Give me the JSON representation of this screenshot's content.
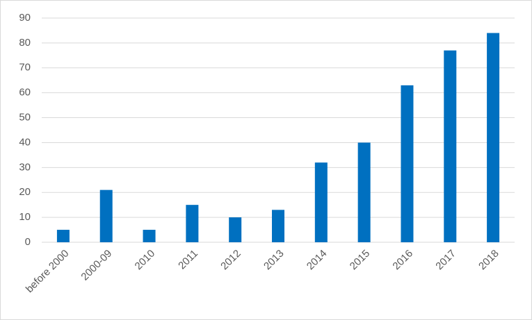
{
  "chart_data": {
    "type": "bar",
    "categories": [
      "before 2000",
      "2000-09",
      "2010",
      "2011",
      "2012",
      "2013",
      "2014",
      "2015",
      "2016",
      "2017",
      "2018"
    ],
    "values": [
      5,
      21,
      5,
      15,
      10,
      13,
      32,
      40,
      63,
      77,
      84
    ],
    "color": "#0070c0",
    "ylim": [
      0,
      90
    ],
    "yticks": [
      0,
      10,
      20,
      30,
      40,
      50,
      60,
      70,
      80,
      90
    ],
    "grid": true
  }
}
